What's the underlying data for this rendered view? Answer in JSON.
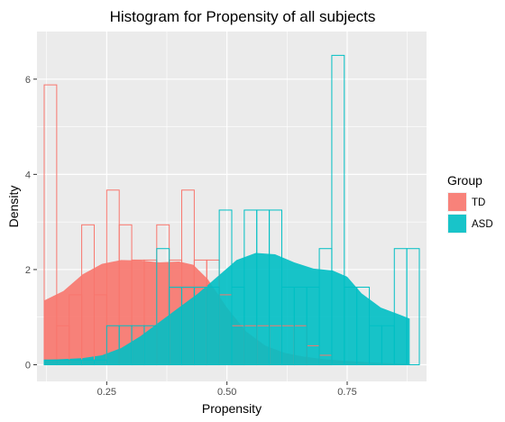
{
  "chart_data": {
    "type": "histogram",
    "title": "Histogram for Propensity of all subjects",
    "xlabel": "Propensity",
    "ylabel": "Density",
    "xlim": [
      0.105,
      0.915
    ],
    "ylim": [
      -0.35,
      7.0
    ],
    "x_ticks": [
      {
        "value": 0.25,
        "label": "0.25"
      },
      {
        "value": 0.5,
        "label": "0.50"
      },
      {
        "value": 0.75,
        "label": "0.75"
      }
    ],
    "y_ticks": [
      {
        "value": 0,
        "label": "0"
      },
      {
        "value": 2,
        "label": "2"
      },
      {
        "value": 4,
        "label": "4"
      },
      {
        "value": 6,
        "label": "6"
      }
    ],
    "grid": true,
    "legend": {
      "title": "Group",
      "position": "right",
      "entries": [
        {
          "label": "TD",
          "color": "#F8766D"
        },
        {
          "label": "ASD",
          "color": "#00BFC4"
        }
      ]
    },
    "series": [
      {
        "name": "TD",
        "color": "#F8766D",
        "bins": [
          {
            "x0": 0.12,
            "x1": 0.146,
            "y": 5.88
          },
          {
            "x0": 0.146,
            "x1": 0.172,
            "y": 0.82
          },
          {
            "x0": 0.172,
            "x1": 0.198,
            "y": 1.47
          },
          {
            "x0": 0.198,
            "x1": 0.224,
            "y": 2.94
          },
          {
            "x0": 0.224,
            "x1": 0.25,
            "y": 1.47
          },
          {
            "x0": 0.25,
            "x1": 0.276,
            "y": 3.67
          },
          {
            "x0": 0.276,
            "x1": 0.302,
            "y": 2.94
          },
          {
            "x0": 0.302,
            "x1": 0.328,
            "y": 2.2
          },
          {
            "x0": 0.328,
            "x1": 0.354,
            "y": 2.2
          },
          {
            "x0": 0.354,
            "x1": 0.38,
            "y": 2.94
          },
          {
            "x0": 0.38,
            "x1": 0.406,
            "y": 2.2
          },
          {
            "x0": 0.406,
            "x1": 0.432,
            "y": 3.67
          },
          {
            "x0": 0.432,
            "x1": 0.458,
            "y": 2.2
          },
          {
            "x0": 0.458,
            "x1": 0.484,
            "y": 2.2
          },
          {
            "x0": 0.484,
            "x1": 0.51,
            "y": 1.47
          },
          {
            "x0": 0.51,
            "x1": 0.536,
            "y": 0.82
          },
          {
            "x0": 0.536,
            "x1": 0.562,
            "y": 0.82
          },
          {
            "x0": 0.562,
            "x1": 0.588,
            "y": 0.82
          },
          {
            "x0": 0.588,
            "x1": 0.614,
            "y": 0.82
          },
          {
            "x0": 0.614,
            "x1": 0.64,
            "y": 0.82
          },
          {
            "x0": 0.64,
            "x1": 0.666,
            "y": 0.82
          },
          {
            "x0": 0.666,
            "x1": 0.692,
            "y": 0.4
          },
          {
            "x0": 0.692,
            "x1": 0.718,
            "y": 0.2
          }
        ],
        "density": [
          [
            0.12,
            1.35
          ],
          [
            0.16,
            1.55
          ],
          [
            0.2,
            1.9
          ],
          [
            0.24,
            2.12
          ],
          [
            0.28,
            2.2
          ],
          [
            0.32,
            2.19
          ],
          [
            0.36,
            2.15
          ],
          [
            0.4,
            2.17
          ],
          [
            0.43,
            2.1
          ],
          [
            0.46,
            1.8
          ],
          [
            0.5,
            1.2
          ],
          [
            0.54,
            0.7
          ],
          [
            0.58,
            0.4
          ],
          [
            0.62,
            0.25
          ],
          [
            0.66,
            0.17
          ],
          [
            0.7,
            0.12
          ],
          [
            0.75,
            0.08
          ],
          [
            0.8,
            0.05
          ],
          [
            0.85,
            0.03
          ],
          [
            0.88,
            0.02
          ]
        ]
      },
      {
        "name": "ASD",
        "color": "#00BFC4",
        "bins": [
          {
            "x0": 0.12,
            "x1": 0.146,
            "y": 0.1
          },
          {
            "x0": 0.146,
            "x1": 0.172,
            "y": 0.1
          },
          {
            "x0": 0.172,
            "x1": 0.198,
            "y": 0.1
          },
          {
            "x0": 0.198,
            "x1": 0.224,
            "y": 0.1
          },
          {
            "x0": 0.224,
            "x1": 0.25,
            "y": 0.1
          },
          {
            "x0": 0.25,
            "x1": 0.276,
            "y": 0.82
          },
          {
            "x0": 0.276,
            "x1": 0.302,
            "y": 0.82
          },
          {
            "x0": 0.302,
            "x1": 0.328,
            "y": 0.82
          },
          {
            "x0": 0.328,
            "x1": 0.354,
            "y": 0.82
          },
          {
            "x0": 0.354,
            "x1": 0.38,
            "y": 2.44
          },
          {
            "x0": 0.38,
            "x1": 0.406,
            "y": 1.63
          },
          {
            "x0": 0.406,
            "x1": 0.432,
            "y": 1.63
          },
          {
            "x0": 0.432,
            "x1": 0.458,
            "y": 1.63
          },
          {
            "x0": 0.458,
            "x1": 0.484,
            "y": 1.63
          },
          {
            "x0": 0.484,
            "x1": 0.51,
            "y": 3.25
          },
          {
            "x0": 0.51,
            "x1": 0.536,
            "y": 1.63
          },
          {
            "x0": 0.536,
            "x1": 0.562,
            "y": 3.25
          },
          {
            "x0": 0.562,
            "x1": 0.588,
            "y": 3.25
          },
          {
            "x0": 0.588,
            "x1": 0.614,
            "y": 3.25
          },
          {
            "x0": 0.614,
            "x1": 0.64,
            "y": 1.63
          },
          {
            "x0": 0.64,
            "x1": 0.666,
            "y": 1.63
          },
          {
            "x0": 0.666,
            "x1": 0.692,
            "y": 1.63
          },
          {
            "x0": 0.692,
            "x1": 0.718,
            "y": 2.44
          },
          {
            "x0": 0.718,
            "x1": 0.744,
            "y": 6.5
          },
          {
            "x0": 0.744,
            "x1": 0.77,
            "y": 1.63
          },
          {
            "x0": 0.77,
            "x1": 0.796,
            "y": 1.63
          },
          {
            "x0": 0.796,
            "x1": 0.822,
            "y": 0.82
          },
          {
            "x0": 0.822,
            "x1": 0.848,
            "y": 0.82
          },
          {
            "x0": 0.848,
            "x1": 0.874,
            "y": 2.44
          },
          {
            "x0": 0.874,
            "x1": 0.9,
            "y": 2.44
          }
        ],
        "density": [
          [
            0.12,
            0.1
          ],
          [
            0.16,
            0.12
          ],
          [
            0.2,
            0.14
          ],
          [
            0.24,
            0.2
          ],
          [
            0.28,
            0.35
          ],
          [
            0.32,
            0.6
          ],
          [
            0.36,
            0.9
          ],
          [
            0.4,
            1.2
          ],
          [
            0.44,
            1.5
          ],
          [
            0.48,
            1.85
          ],
          [
            0.52,
            2.2
          ],
          [
            0.56,
            2.35
          ],
          [
            0.6,
            2.32
          ],
          [
            0.64,
            2.15
          ],
          [
            0.68,
            2.02
          ],
          [
            0.72,
            1.98
          ],
          [
            0.75,
            1.85
          ],
          [
            0.78,
            1.5
          ],
          [
            0.82,
            1.2
          ],
          [
            0.86,
            1.05
          ],
          [
            0.88,
            0.97
          ]
        ]
      }
    ]
  }
}
